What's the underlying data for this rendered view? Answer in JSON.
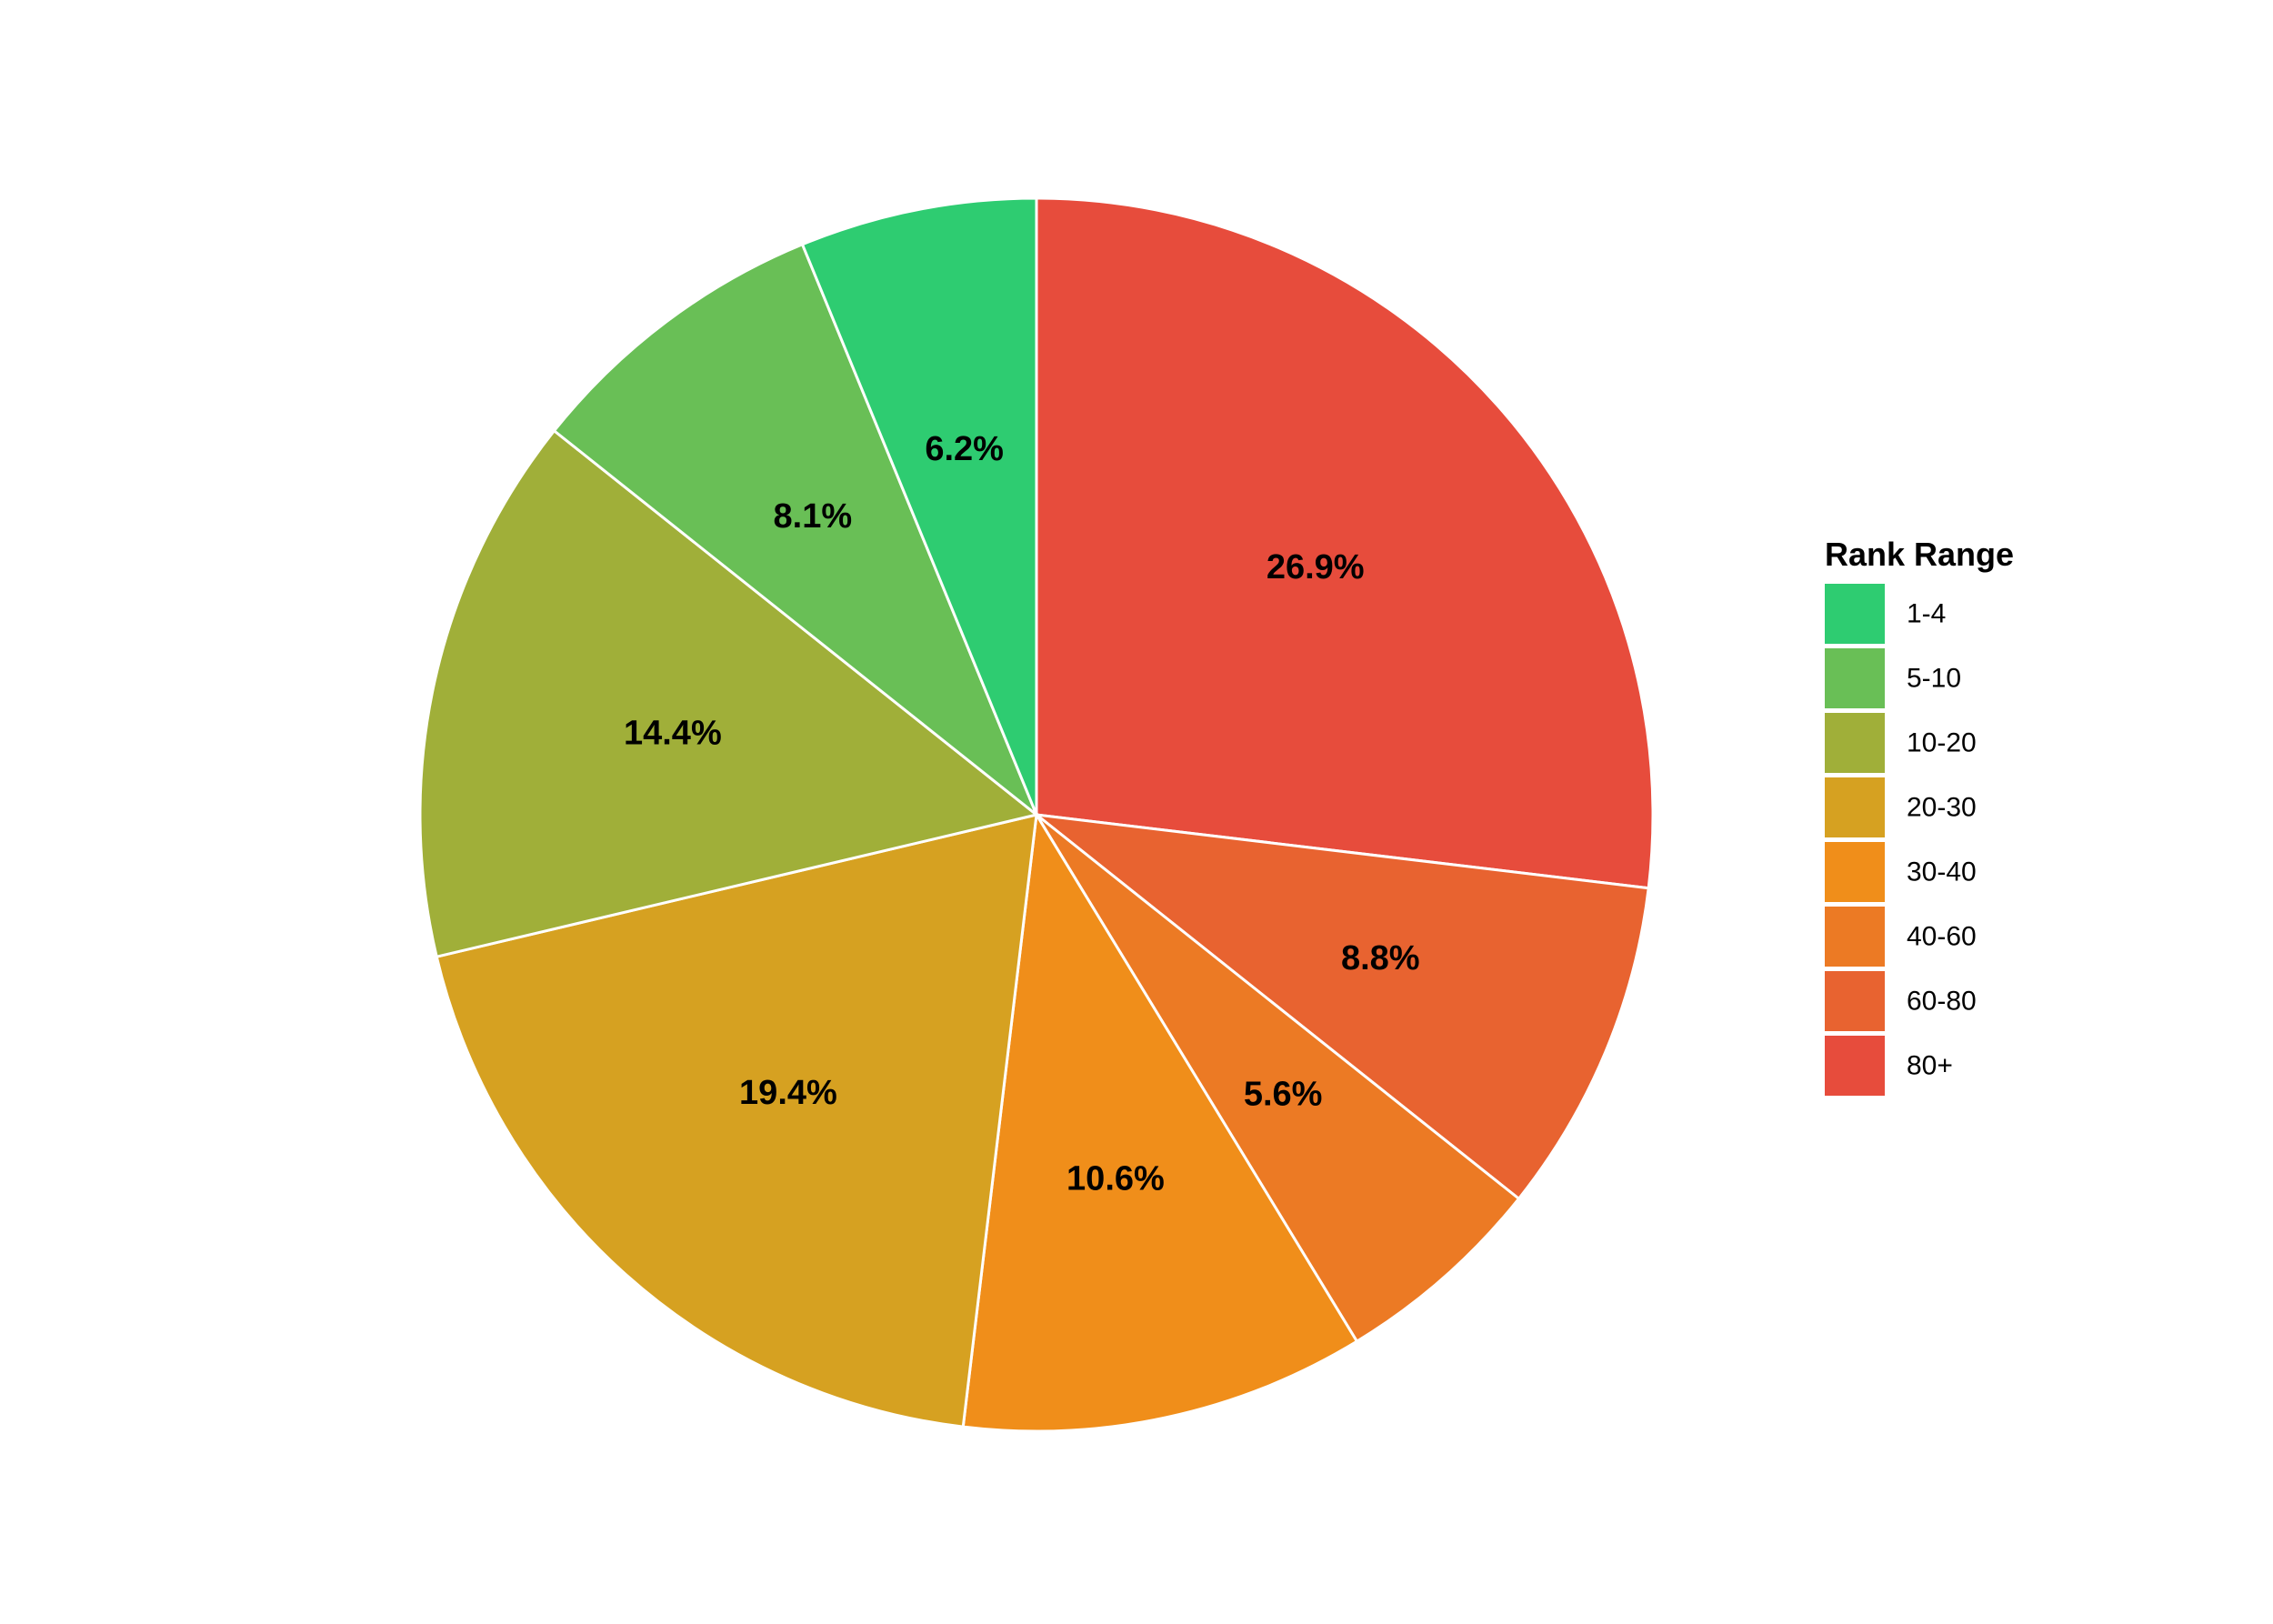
{
  "chart_data": {
    "type": "pie",
    "legend_title": "Rank Range",
    "legend_position": "right",
    "start_angle": "12 o'clock",
    "direction": "clockwise",
    "slices": [
      {
        "category": "80+",
        "value": 26.9,
        "label": "26.9%",
        "color": "#E74C3C"
      },
      {
        "category": "60-80",
        "value": 8.8,
        "label": "8.8%",
        "color": "#E86330"
      },
      {
        "category": "40-60",
        "value": 5.6,
        "label": "5.6%",
        "color": "#EC7A24"
      },
      {
        "category": "30-40",
        "value": 10.6,
        "label": "10.6%",
        "color": "#F08E1A"
      },
      {
        "category": "20-30",
        "value": 19.4,
        "label": "19.4%",
        "color": "#D6A121"
      },
      {
        "category": "10-20",
        "value": 14.4,
        "label": "14.4%",
        "color": "#A0AF39"
      },
      {
        "category": "5-10",
        "value": 8.1,
        "label": "8.1%",
        "color": "#69BF56"
      },
      {
        "category": "1-4",
        "value": 6.2,
        "label": "6.2%",
        "color": "#2ECC71"
      }
    ],
    "legend_order": [
      "1-4",
      "5-10",
      "10-20",
      "20-30",
      "30-40",
      "40-60",
      "60-80",
      "80+"
    ]
  }
}
